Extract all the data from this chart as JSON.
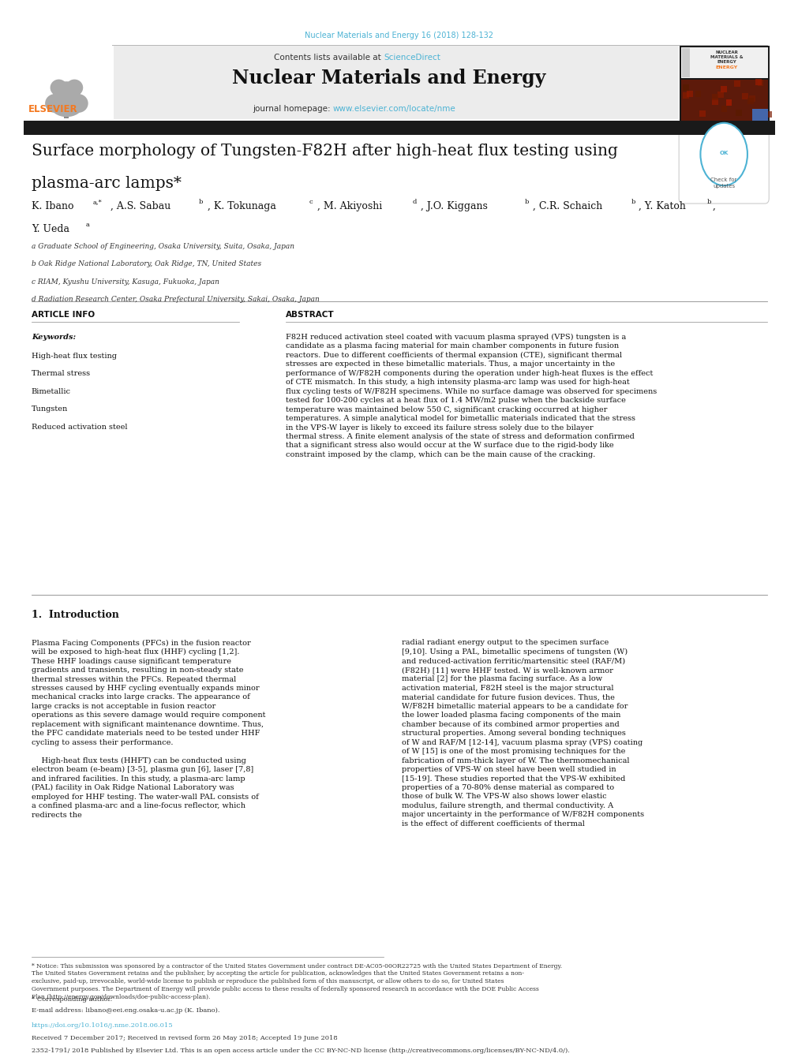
{
  "page_width": 9.92,
  "page_height": 13.23,
  "bg_color": "#ffffff",
  "header_journal_ref": "Nuclear Materials and Energy 16 (2018) 128-132",
  "header_journal_color": "#4db3d4",
  "journal_title": "Nuclear Materials and Energy",
  "journal_homepage_url": "www.elsevier.com/locate/nme",
  "elsevier_color": "#f47920",
  "link_color": "#4db3d4",
  "black_bar_color": "#1a1a1a",
  "paper_title_line1": "Surface morphology of Tungsten-F82H after high-heat flux testing using",
  "paper_title_line2": "plasma-arc lamps*",
  "authors_line1": "K. Ibano",
  "authors_line1_super": "a,*",
  "authors_line1_rest": ", A.S. Sabau",
  "authors_line1_super2": "b",
  "authors_line1_rest2": ", K. Tokunaga",
  "authors_line1_super3": "c",
  "authors_line1_rest3": ", M. Akiyoshi",
  "authors_line1_super4": "d",
  "authors_line1_rest4": ", J.O. Kiggans",
  "authors_line1_super5": "b",
  "authors_line1_rest5": ", C.R. Schaich",
  "authors_line1_super6": "b",
  "authors_line1_rest6": ", Y. Katoh",
  "authors_line1_super7": "b",
  "authors_line1_rest7": ",",
  "authors_line2": "Y. Ueda",
  "authors_line2_super": "a",
  "affil_a": "a Graduate School of Engineering, Osaka University, Suita, Osaka, Japan",
  "affil_b": "b Oak Ridge National Laboratory, Oak Ridge, TN, United States",
  "affil_c": "c RIAM, Kyushu University, Kasuga, Fukuoka, Japan",
  "affil_d": "d Radiation Research Center, Osaka Prefectural University, Sakai, Osaka, Japan",
  "article_info_title": "ARTICLE INFO",
  "keywords_label": "Keywords:",
  "keywords": [
    "High-heat flux testing",
    "Thermal stress",
    "Bimetallic",
    "Tungsten",
    "Reduced activation steel"
  ],
  "abstract_title": "ABSTRACT",
  "abstract_text": "F82H reduced activation steel coated with vacuum plasma sprayed (VPS) tungsten is a candidate as a plasma facing material for main chamber components in future fusion reactors. Due to different coefficients of thermal expansion (CTE), significant thermal stresses are expected in these bimetallic materials. Thus, a major uncertainty in the performance of W/F82H components during the operation under high-heat fluxes is the effect of CTE mismatch. In this study, a high intensity plasma-arc lamp was used for high-heat flux cycling tests of W/F82H specimens. While no surface damage was observed for specimens tested for 100-200 cycles at a heat flux of 1.4 MW/m2 pulse when the backside surface temperature was maintained below 550 C, significant cracking occurred at higher temperatures. A simple analytical model for bimetallic materials indicated that the stress in the VPS-W layer is likely to exceed its failure stress solely due to the bilayer thermal stress. A finite element analysis of the state of stress and deformation confirmed that a significant stress also would occur at the W surface due to the rigid-body like constraint imposed by the clamp, which can be the main cause of the cracking.",
  "section1_title": "1.  Introduction",
  "intro_col1_p1": "Plasma Facing Components (PFCs) in the fusion reactor will be exposed to high-heat flux (HHF) cycling [1,2]. These HHF loadings cause significant temperature gradients and transients, resulting in non-steady state thermal stresses within the PFCs. Repeated thermal stresses caused by HHF cycling eventually expands minor mechanical cracks into large cracks. The appearance of large cracks is not acceptable in fusion reactor operations as this severe damage would require component replacement with significant maintenance downtime. Thus, the PFC candidate materials need to be tested under HHF cycling to assess their performance.",
  "intro_col1_p2": "High-heat flux tests (HHFT) can be conducted using electron beam (e-beam) [3-5], plasma gun [6], laser [7,8] and infrared facilities. In this study, a plasma-arc lamp (PAL) facility in Oak Ridge National Laboratory was employed for HHF testing. The water-wall PAL consists of a confined plasma-arc and a line-focus reflector, which redirects the",
  "intro_col2": "radial radiant energy output to the specimen surface [9,10]. Using a PAL, bimetallic specimens of tungsten (W) and reduced-activation ferritic/martensitic steel (RAF/M) (F82H) [11] were HHF tested. W is well-known armor material [2] for the plasma facing surface. As a low activation material, F82H steel is the major structural material candidate for future fusion devices. Thus, the W/F82H bimetallic material appears to be a candidate for the lower loaded plasma facing components of the main chamber because of its combined armor properties and structural properties. Among several bonding techniques of W and RAF/M [12-14], vacuum plasma spray (VPS) coating of W [15] is one of the most promising techniques for the fabrication of mm-thick layer of W. The thermomechanical properties of VPS-W on steel have been well studied in [15-19]. These studies reported that the VPS-W exhibited properties of a 70-80% dense material as compared to those of bulk W. The VPS-W also shows lower elastic modulus, failure strength, and thermal conductivity. A major uncertainty in the performance of W/F82H components is the effect of different coefficients of thermal",
  "footnote_star": "* Notice: This submission was sponsored by a contractor of the United States Government under contract DE-AC05-00OR22725 with the United States Department of Energy. The United States Government retains and the publisher, by accepting the article for publication, acknowledges that the United States Government retains a non-exclusive, paid-up, irrevocable, world-wide license to publish or reproduce the published form of this manuscript, or allow others to do so, for United States Government purposes. The Department of Energy will provide public access to these results of federally sponsored research in accordance with the DOE Public Access Plan (http://energy.gov/downloads/doe-public-access-plan).",
  "corresponding_text": "* Corresponding author.",
  "email_text": "E-mail address: libano@eei.eng.osaka-u.ac.jp (K. Ibano).",
  "doi_text": "https://doi.org/10.1016/j.nme.2018.06.015",
  "received_text": "Received 7 December 2017; Received in revised form 26 May 2018; Accepted 19 June 2018",
  "license_text": "2352-1791/ 2018 Published by Elsevier Ltd. This is an open access article under the CC BY-NC-ND license (http://creativecommons.org/licenses/BY-NC-ND/4.0/)."
}
